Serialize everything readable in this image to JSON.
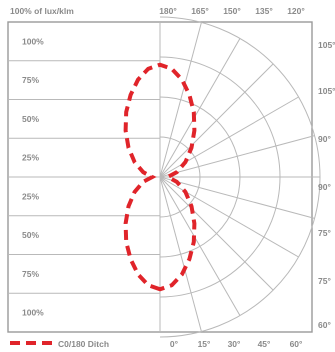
{
  "chart_data": {
    "type": "polar",
    "title": "",
    "header_left": "100% of lux/klm",
    "top_angle_labels": [
      "180°",
      "165°",
      "150°",
      "135°",
      "120°"
    ],
    "bottom_angle_labels": [
      "0°",
      "15°",
      "30°",
      "45°",
      "60°"
    ],
    "right_angle_labels": [
      "105°",
      "105°",
      "90°",
      "90°",
      "75°",
      "75°",
      "60°"
    ],
    "radial_labels_top": [
      "100%",
      "75%",
      "50%",
      "25%"
    ],
    "radial_labels_bottom": [
      "25%",
      "50%",
      "75%",
      "100%"
    ],
    "legend_label": "C0/180 Ditch",
    "series": [
      {
        "name": "C0/180 Ditch",
        "color": "#e0242a",
        "theta_deg": [
          0,
          10,
          20,
          30,
          40,
          50,
          60,
          70,
          80,
          90,
          100,
          110,
          120,
          130,
          140,
          150,
          160,
          170,
          180,
          190,
          200,
          210,
          220,
          230,
          240,
          250,
          260,
          270,
          280,
          290,
          300,
          310,
          320,
          330,
          340,
          350,
          360
        ],
        "r_percent": [
          90,
          88,
          83,
          76,
          68,
          58,
          47,
          35,
          22,
          10,
          22,
          35,
          47,
          58,
          68,
          76,
          83,
          88,
          90,
          88,
          83,
          76,
          68,
          58,
          47,
          35,
          22,
          10,
          22,
          35,
          47,
          58,
          68,
          76,
          83,
          88,
          90
        ]
      }
    ],
    "legend_position": "bottom-left",
    "grid": true
  }
}
